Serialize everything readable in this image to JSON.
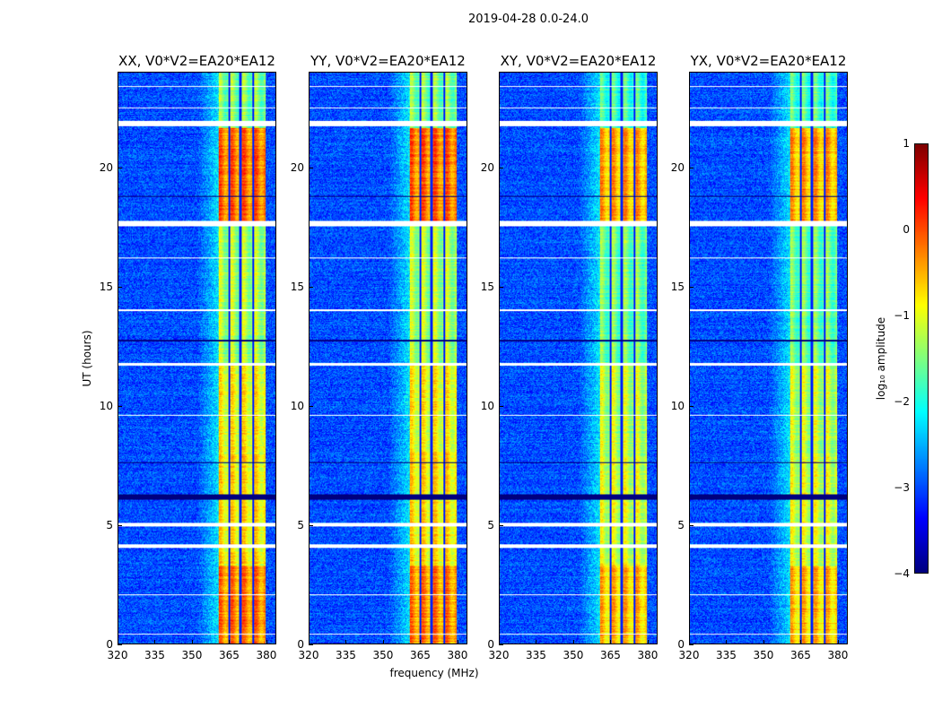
{
  "chart_data": {
    "type": "heatmap",
    "title": "2019-04-28 0.0-24.0",
    "xlabel": "frequency (MHz)",
    "ylabel": "UT (hours)",
    "xlim": [
      320,
      384
    ],
    "ylim": [
      0,
      24
    ],
    "xticks": [
      320,
      335,
      350,
      365,
      380
    ],
    "yticks": [
      0,
      5,
      10,
      15,
      20
    ],
    "panels": [
      {
        "title": "XX, V0*V2=EA20*EA12"
      },
      {
        "title": "YY, V0*V2=EA20*EA12"
      },
      {
        "title": "XY, V0*V2=EA20*EA12"
      },
      {
        "title": "YX, V0*V2=EA20*EA12"
      }
    ],
    "colorbar": {
      "label": "log₁₀ amplitude",
      "range": [
        -4,
        1
      ],
      "ticks": [
        1,
        0,
        -1,
        -2,
        -3,
        -4
      ],
      "tick_labels": [
        "1",
        "0",
        "−1",
        "−2",
        "−3",
        "−4"
      ],
      "colormap": "jet"
    },
    "features": {
      "background_log_amp": -3.0,
      "band_mhz": [
        360.5,
        380
      ],
      "band_gaps_mhz": [
        365,
        369.5,
        374.7
      ],
      "band_levels_by_time": [
        {
          "t": [
            0,
            3.3
          ],
          "log_amp": -0.3
        },
        {
          "t": [
            3.3,
            8
          ],
          "log_amp": -0.8
        },
        {
          "t": [
            8,
            11.7
          ],
          "log_amp": -0.9
        },
        {
          "t": [
            11.7,
            17.6
          ],
          "log_amp": -1.3
        },
        {
          "t": [
            17.8,
            21.7
          ],
          "log_amp": -0.2
        },
        {
          "t": [
            22,
            24
          ],
          "log_amp": -1.5
        }
      ],
      "flagged_hours": [
        [
          17.55,
          17.8
        ],
        [
          11.7,
          11.8
        ],
        [
          21.75,
          22.0
        ],
        [
          4.05,
          4.2
        ],
        [
          4.95,
          5.1
        ],
        [
          0.4,
          0.45
        ],
        [
          2.05,
          2.1
        ],
        [
          9.6,
          9.65
        ],
        [
          14.0,
          14.05
        ],
        [
          16.2,
          16.25
        ],
        [
          22.5,
          22.55
        ],
        [
          23.4,
          23.45
        ]
      ],
      "dead_hours": [
        [
          6.05,
          6.3
        ],
        [
          12.7,
          12.8
        ],
        [
          7.6,
          7.65
        ],
        [
          18.8,
          18.85
        ]
      ]
    }
  }
}
